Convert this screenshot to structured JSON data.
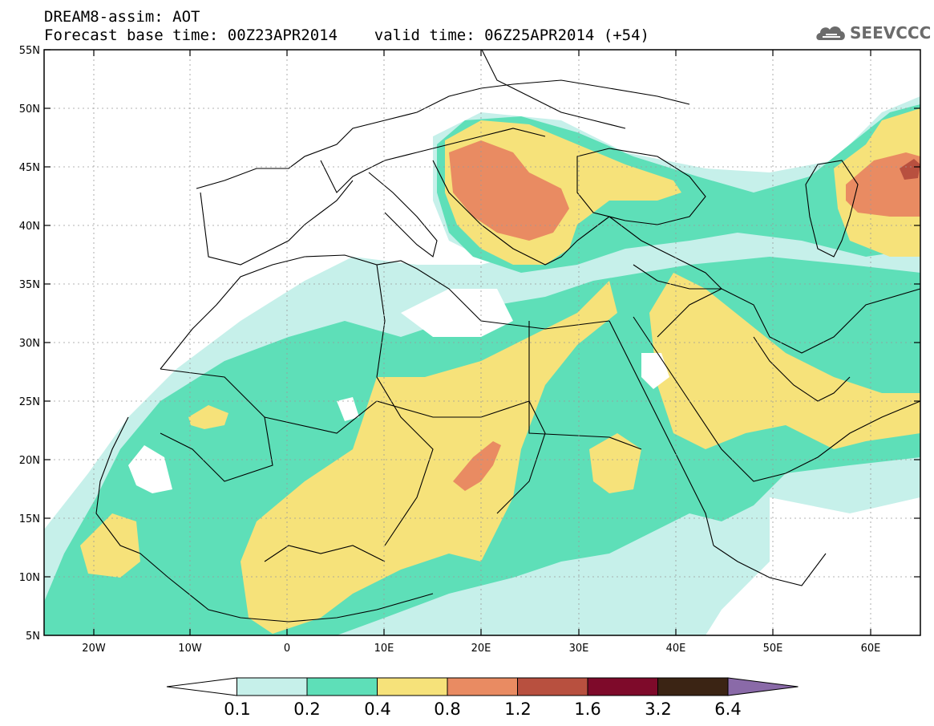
{
  "header": {
    "title_line1": "DREAM8-assim: AOT",
    "title_line2": "Forecast base time: 00Z23APR2014    valid time: 06Z25APR2014 (+54)"
  },
  "logo": {
    "text": "SEEVCCC",
    "icon": "cloud-logo-icon"
  },
  "axes": {
    "lat_labels": [
      "55N",
      "50N",
      "45N",
      "40N",
      "35N",
      "30N",
      "25N",
      "20N",
      "15N",
      "10N",
      "5N"
    ],
    "lon_labels": [
      "20W",
      "10W",
      "0",
      "10E",
      "20E",
      "30E",
      "40E",
      "50E",
      "60E"
    ]
  },
  "colorbar": {
    "labels": [
      "0.1",
      "0.2",
      "0.4",
      "0.8",
      "1.2",
      "1.6",
      "3.2",
      "6.4"
    ],
    "colors": [
      "#ffffff",
      "#c6f0ea",
      "#5edfb8",
      "#f6e27a",
      "#e98b62",
      "#b8503f",
      "#7e0a2a",
      "#3b2414",
      "#8a6aa8"
    ]
  }
}
